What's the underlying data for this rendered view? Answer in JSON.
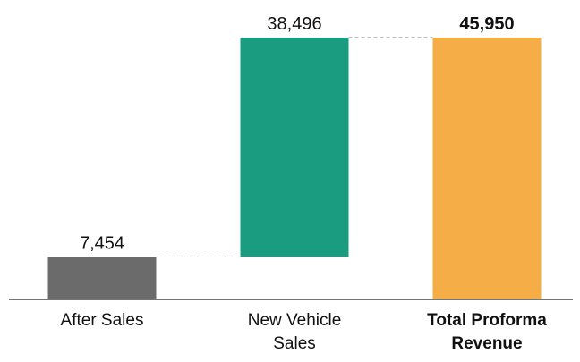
{
  "chart_data": {
    "type": "waterfall",
    "categories": [
      "After Sales",
      "New Vehicle Sales",
      "Total Proforma Revenue"
    ],
    "values": [
      7454,
      38496,
      45950
    ],
    "value_labels": [
      "7,454",
      "38,496",
      "45,950"
    ],
    "measure": [
      "relative",
      "relative",
      "total"
    ],
    "colors": [
      "#6b6b6b",
      "#1a9c80",
      "#f4ad47"
    ]
  }
}
